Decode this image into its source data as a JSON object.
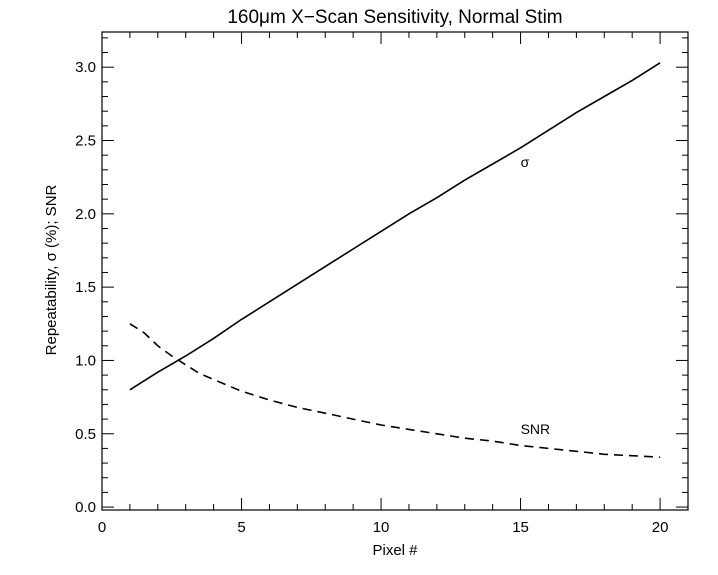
{
  "chart_data": {
    "type": "line",
    "title": "160μm X−Scan Sensitivity, Normal Stim",
    "xlabel": "Pixel #",
    "ylabel": "Repeatability, σ (%); SNR",
    "xlim": [
      0,
      21
    ],
    "ylim": [
      -0.02,
      3.24
    ],
    "x_ticks": [
      0,
      5,
      10,
      15,
      20
    ],
    "x_tick_labels": [
      "0",
      "5",
      "10",
      "15",
      "20"
    ],
    "y_ticks": [
      0.0,
      0.5,
      1.0,
      1.5,
      2.0,
      2.5,
      3.0
    ],
    "y_tick_labels": [
      "0.0",
      "0.5",
      "1.0",
      "1.5",
      "2.0",
      "2.5",
      "3.0"
    ],
    "grid": false,
    "series": [
      {
        "name": "σ",
        "style": "solid",
        "color": "#000000",
        "label_at": [
          15,
          2.32
        ],
        "x": [
          1,
          2,
          3,
          4,
          5,
          6,
          7,
          8,
          9,
          10,
          11,
          12,
          13,
          14,
          15,
          16,
          17,
          18,
          19,
          20
        ],
        "values": [
          0.8,
          0.92,
          1.03,
          1.15,
          1.28,
          1.4,
          1.52,
          1.64,
          1.76,
          1.88,
          2.0,
          2.11,
          2.23,
          2.34,
          2.45,
          2.57,
          2.69,
          2.8,
          2.91,
          3.03
        ]
      },
      {
        "name": "SNR",
        "style": "dashed",
        "color": "#000000",
        "label_at": [
          15,
          0.5
        ],
        "x": [
          1,
          1.5,
          2,
          2.5,
          3,
          3.5,
          4,
          5,
          6,
          7,
          8,
          9,
          10,
          11,
          12,
          13,
          14,
          15,
          16,
          17,
          18,
          19,
          20
        ],
        "values": [
          1.25,
          1.19,
          1.1,
          1.03,
          0.97,
          0.91,
          0.87,
          0.79,
          0.73,
          0.68,
          0.64,
          0.6,
          0.56,
          0.53,
          0.5,
          0.47,
          0.45,
          0.42,
          0.4,
          0.38,
          0.36,
          0.35,
          0.34
        ]
      }
    ]
  }
}
